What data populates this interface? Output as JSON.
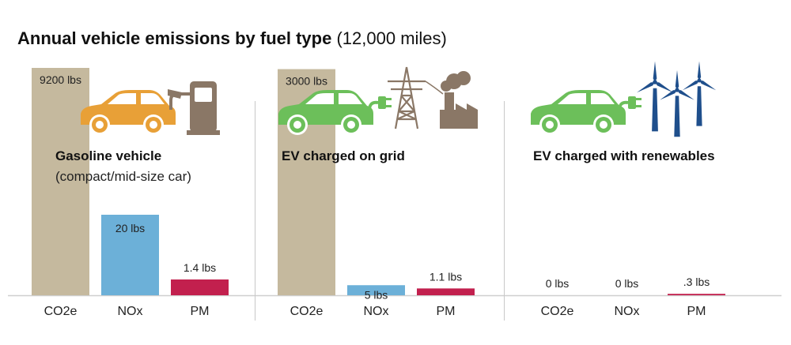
{
  "chart_data": {
    "type": "bar",
    "title": "Annual vehicle emissions by fuel type",
    "subtitle": "(12,000 miles)",
    "categories": [
      "CO2e",
      "NOx",
      "PM"
    ],
    "colors": {
      "CO2e": "#c5b99e",
      "NOx": "#6cb0d8",
      "PM": "#c2204e"
    },
    "groups": [
      {
        "name": "Gasoline vehicle",
        "subtitle": "(compact/mid-size car)",
        "car_color": "#e8a037",
        "icon": "gas-pump-icon",
        "values": [
          9200,
          20,
          1.4
        ],
        "labels": [
          "9200 lbs",
          "20 lbs",
          "1.4 lbs"
        ]
      },
      {
        "name": "EV charged on grid",
        "subtitle": "",
        "car_color": "#6cbf5a",
        "icon": "power-grid-icon",
        "values": [
          3000,
          5,
          1.1
        ],
        "labels": [
          "3000 lbs",
          "5 lbs",
          "1.1 lbs"
        ]
      },
      {
        "name": "EV charged with renewables",
        "subtitle": "",
        "car_color": "#6cbf5a",
        "icon": "wind-turbine-icon",
        "values": [
          0,
          0,
          0.3
        ],
        "labels": [
          "0 lbs",
          "0 lbs",
          ".3 lbs"
        ]
      }
    ],
    "note": "Bars are not drawn to a single common scale"
  }
}
